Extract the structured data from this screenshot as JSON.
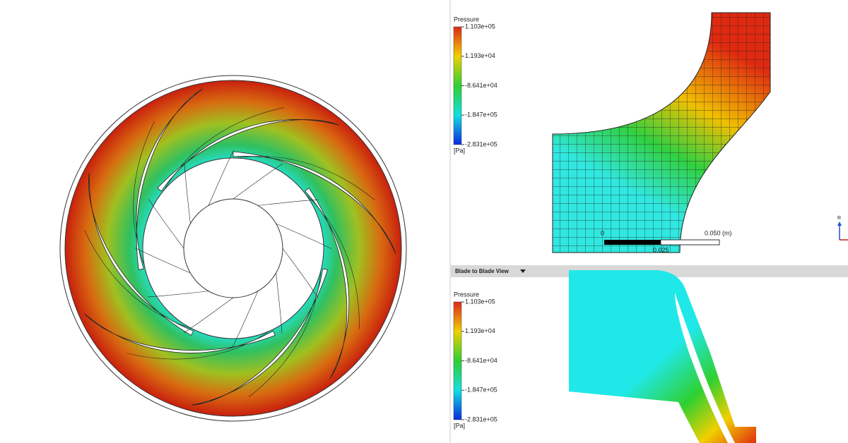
{
  "meridional_view": {
    "legend": {
      "title": "Pressure",
      "ticks": [
        "1.103e+05",
        "1.193e+04",
        "-8.641e+04",
        "-1.847e+05",
        "-2.831e+05"
      ],
      "unit": "[Pa]"
    },
    "scale_bar": {
      "start": "0",
      "end": "0.050 (m)",
      "mid": "0.025"
    },
    "axis_label": "R"
  },
  "blade_to_blade_view": {
    "title": "Blade to Blade View",
    "legend": {
      "title": "Pressure",
      "ticks": [
        "1.103e+05",
        "1.193e+04",
        "-8.641e+04",
        "-1.847e+05",
        "-2.831e+05"
      ],
      "unit": "[Pa]"
    }
  }
}
